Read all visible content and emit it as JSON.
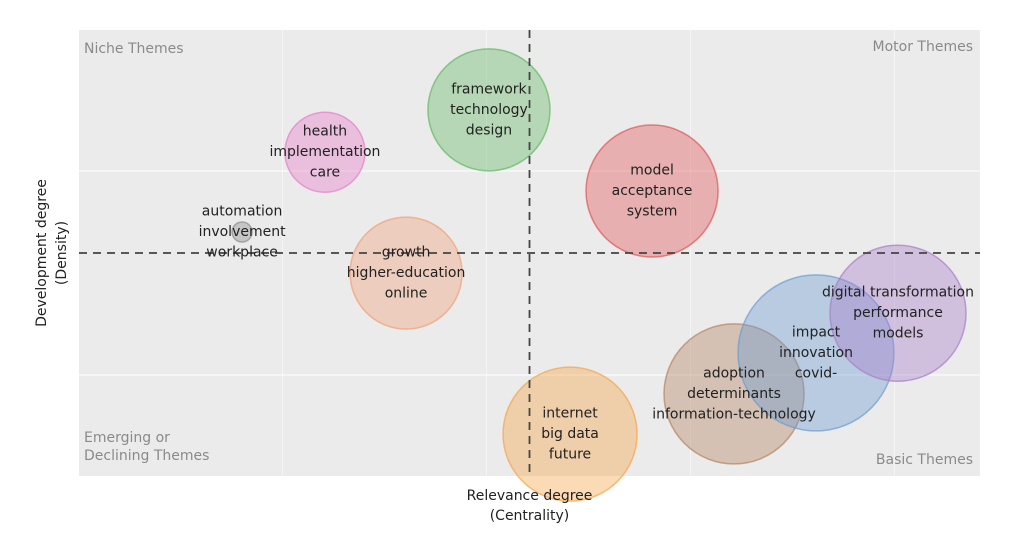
{
  "chart_data": {
    "type": "bubble",
    "x_label": [
      "Relevance degree",
      "(Centrality)"
    ],
    "y_label": [
      "Development degree",
      "(Density)"
    ],
    "quadrants": {
      "top_left": [
        "Niche Themes"
      ],
      "top_right": [
        "Motor Themes"
      ],
      "bottom_left": [
        "Emerging or",
        "Declining Themes"
      ],
      "bottom_right": [
        "Basic Themes"
      ]
    },
    "xlim": [
      0,
      100
    ],
    "ylim": [
      0,
      100
    ],
    "x_divider": 50,
    "y_divider": 50,
    "labels": [
      [
        "framework",
        "technology",
        "design"
      ],
      [
        "health",
        "implementation",
        "care"
      ],
      [
        "automation",
        "involvement",
        "workplace"
      ],
      [
        "model",
        "acceptance",
        "system"
      ],
      [
        "growth",
        "higher-education",
        "online"
      ],
      [
        "internet",
        "big data",
        "future"
      ],
      [
        "adoption",
        "determinants",
        "information-technology"
      ],
      [
        "impact",
        "innovation",
        "covid-"
      ],
      [
        "digital transformation",
        "performance",
        "models"
      ]
    ],
    "x": [
      45.5,
      27.3,
      18.1,
      63.6,
      36.3,
      54.5,
      72.7,
      81.8,
      90.9
    ],
    "values": [
      82.1,
      72.6,
      54.7,
      63.9,
      45.5,
      9.4,
      18.4,
      27.6,
      36.5
    ],
    "sizes": [
      61,
      40,
      10,
      66,
      56,
      67,
      70,
      78,
      68
    ],
    "colors": [
      "#63b863",
      "#e57ec8",
      "#8c8c8c",
      "#e05555",
      "#f0a078",
      "#f5a448",
      "#b5835f",
      "#6b9bd2",
      "#a87cc9"
    ]
  }
}
